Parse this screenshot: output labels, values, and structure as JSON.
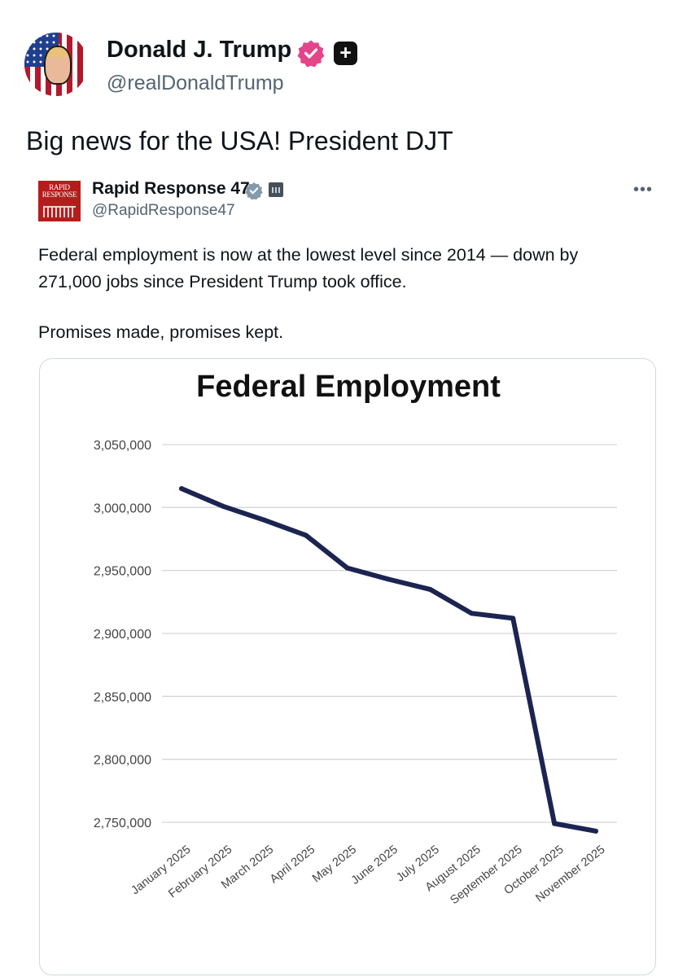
{
  "post": {
    "author_name": "Donald J. Trump",
    "author_handle": "@realDonaldTrump",
    "text": "Big news for the USA! President DJT",
    "icons": {
      "avatar": "avatar-image",
      "verified": "verified-check-icon",
      "plus": "plus-square-icon"
    },
    "colors": {
      "verified": "#e3448a"
    }
  },
  "quoted_post": {
    "author_name": "Rapid Response 47",
    "author_handle": "@RapidResponse47",
    "avatar_text": [
      "RAPID",
      "RESPONSE"
    ],
    "text_line1": "Federal employment is now at the lowest level since 2014 — down by 271,000 jobs since President Trump took office.",
    "text_line2": "Promises made, promises kept.",
    "more_label": "•••",
    "icons": {
      "verified": "gray-verified-check-icon",
      "affiliation": "government-building-icon",
      "more": "more-options-icon"
    }
  },
  "chart_data": {
    "type": "line",
    "title": "Federal Employment",
    "x": [
      "January 2025",
      "February 2025",
      "March 2025",
      "April 2025",
      "May 2025",
      "June 2025",
      "July 2025",
      "August 2025",
      "September 2025",
      "October 2025",
      "November 2025"
    ],
    "series": [
      {
        "values": [
          3015000,
          3001000,
          2990000,
          2978000,
          2952000,
          2943000,
          2935000,
          2916000,
          2912000,
          2749000,
          2743000
        ],
        "color": "#1c2451"
      }
    ],
    "ylim": [
      2750000,
      3050000
    ],
    "yticks": [
      3050000,
      3000000,
      2950000,
      2900000,
      2850000,
      2800000,
      2750000
    ],
    "ytick_labels": [
      "3,050,000",
      "3,000,000",
      "2,950,000",
      "2,900,000",
      "2,850,000",
      "2,800,000",
      "2,750,000"
    ],
    "grid": true,
    "xlabel": "",
    "ylabel": ""
  }
}
